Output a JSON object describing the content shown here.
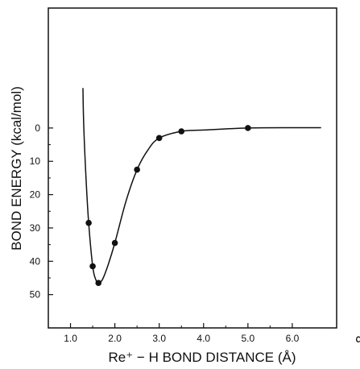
{
  "chart_data": {
    "type": "line",
    "xlabel": "Re⁺ − H BOND DISTANCE (Å)",
    "ylabel": "BOND ENERGY (kcal/mol)",
    "x_ticks": [
      "1.0",
      "2.0",
      "3.0",
      "4.0",
      "5.0",
      "6.0",
      "∞"
    ],
    "y_ticks": [
      "0",
      "10",
      "20",
      "30",
      "40",
      "50"
    ],
    "xlim": [
      0.5,
      7.0
    ],
    "ylim": [
      60,
      -36
    ],
    "y_axis_inverted": true,
    "grid": false,
    "points": [
      {
        "x": 1.41,
        "y": 28.5
      },
      {
        "x": 1.5,
        "y": 41.5
      },
      {
        "x": 1.63,
        "y": 46.5
      },
      {
        "x": 2.0,
        "y": 34.5
      },
      {
        "x": 2.5,
        "y": 12.5
      },
      {
        "x": 3.0,
        "y": 3.0
      },
      {
        "x": 3.5,
        "y": 1.0
      },
      {
        "x": 5.0,
        "y": 0.0
      }
    ],
    "curve": [
      {
        "x": 1.28,
        "y": -12
      },
      {
        "x": 1.3,
        "y": 0
      },
      {
        "x": 1.35,
        "y": 15
      },
      {
        "x": 1.41,
        "y": 28.5
      },
      {
        "x": 1.5,
        "y": 41.5
      },
      {
        "x": 1.57,
        "y": 45.5
      },
      {
        "x": 1.63,
        "y": 46.5
      },
      {
        "x": 1.72,
        "y": 45.5
      },
      {
        "x": 1.85,
        "y": 41
      },
      {
        "x": 2.0,
        "y": 34.5
      },
      {
        "x": 2.25,
        "y": 22
      },
      {
        "x": 2.5,
        "y": 12.5
      },
      {
        "x": 2.75,
        "y": 6.5
      },
      {
        "x": 3.0,
        "y": 3.0
      },
      {
        "x": 3.5,
        "y": 1.0
      },
      {
        "x": 4.0,
        "y": 0.6
      },
      {
        "x": 5.0,
        "y": 0.0
      },
      {
        "x": 6.0,
        "y": -0.1
      },
      {
        "x": 6.65,
        "y": -0.1
      }
    ]
  }
}
